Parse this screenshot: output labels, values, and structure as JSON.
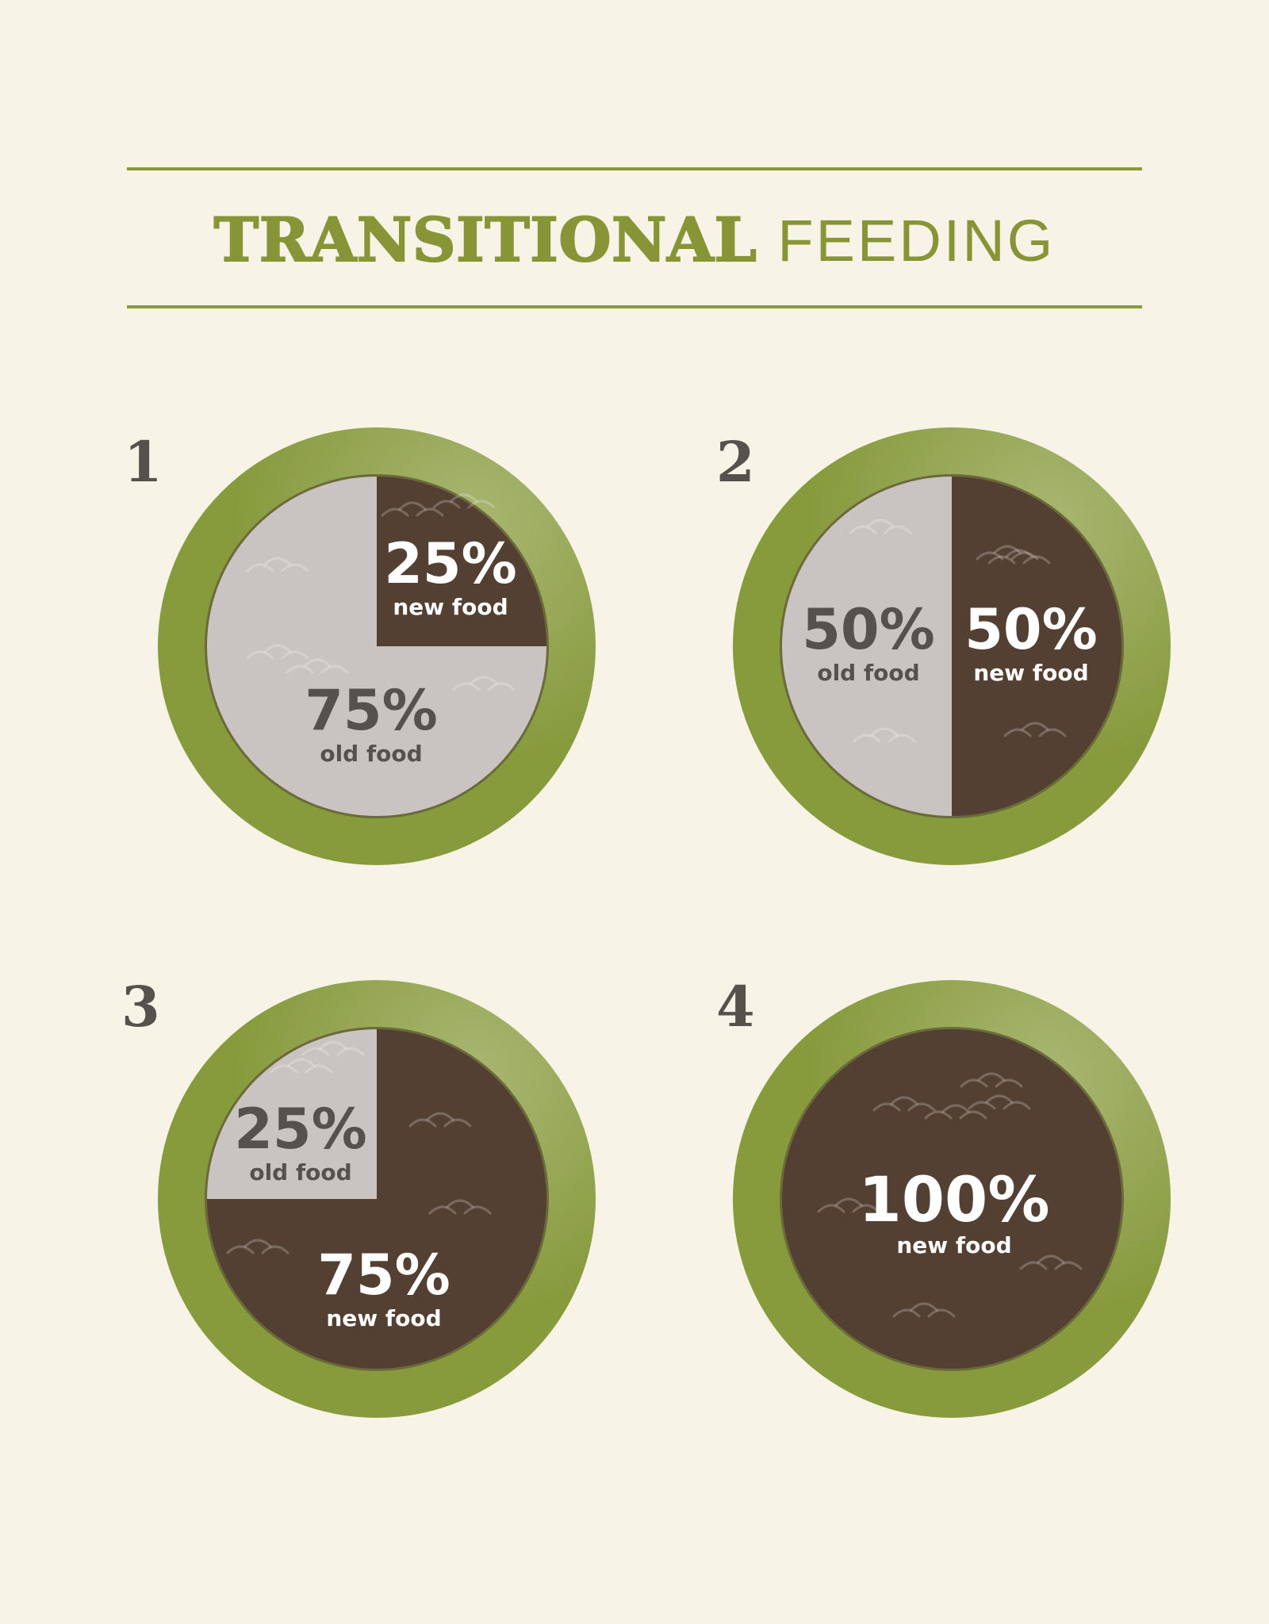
{
  "header": {
    "title_bold": "TRANSITIONAL",
    "title_light": "FEEDING"
  },
  "colors": {
    "background": "#f7f3e6",
    "accent_green": "#879536",
    "bowl_green": "#879a3c",
    "new_food": "#543f33",
    "old_food": "#c9c4c2",
    "number_gray": "#55514d"
  },
  "steps": [
    {
      "number": "1"
    },
    {
      "number": "2"
    },
    {
      "number": "3"
    },
    {
      "number": "4"
    }
  ],
  "chart_data": [
    {
      "type": "pie",
      "title": "1",
      "slices": [
        {
          "label": "new food",
          "value": 25,
          "display": "25%"
        },
        {
          "label": "old food",
          "value": 75,
          "display": "75%"
        }
      ]
    },
    {
      "type": "pie",
      "title": "2",
      "slices": [
        {
          "label": "new food",
          "value": 50,
          "display": "50%"
        },
        {
          "label": "old food",
          "value": 50,
          "display": "50%"
        }
      ]
    },
    {
      "type": "pie",
      "title": "3",
      "slices": [
        {
          "label": "new food",
          "value": 75,
          "display": "75%"
        },
        {
          "label": "old food",
          "value": 25,
          "display": "25%"
        }
      ]
    },
    {
      "type": "pie",
      "title": "4",
      "slices": [
        {
          "label": "new food",
          "value": 100,
          "display": "100%"
        }
      ]
    }
  ]
}
